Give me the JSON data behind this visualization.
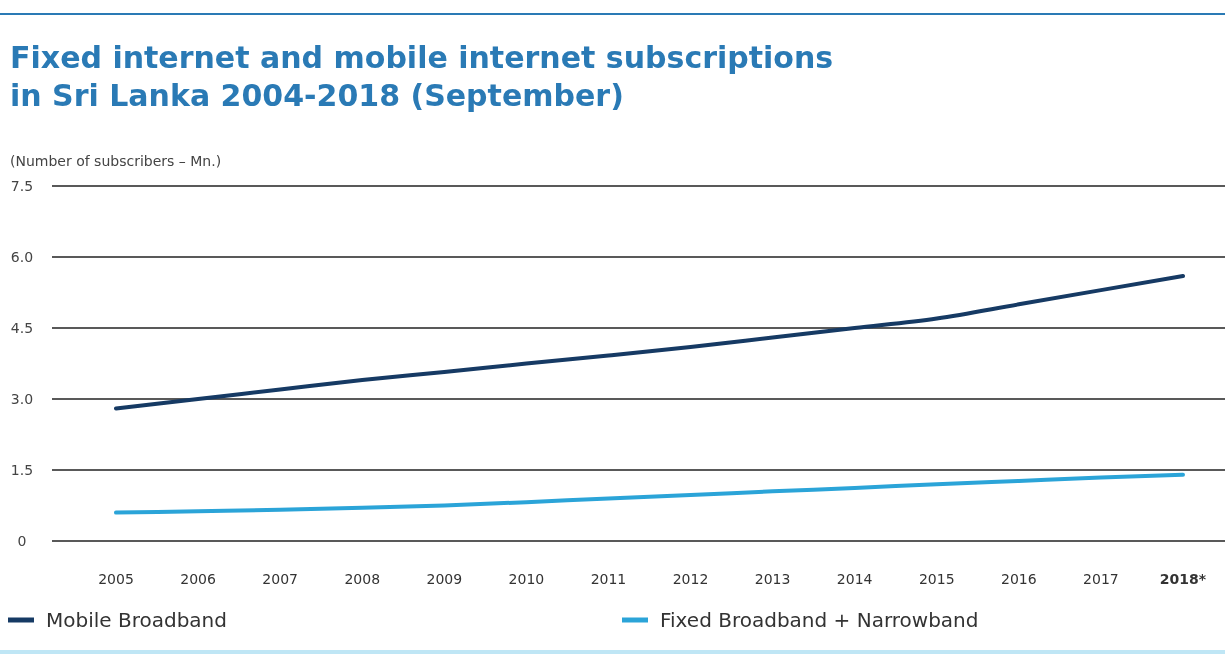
{
  "chart_data": {
    "type": "line",
    "title": "Fixed internet and mobile internet subscriptions\nin Sri Lanka 2004-2018 (September)",
    "ylabel": "(Number of subscribers – Mn.)",
    "categories": [
      "2005",
      "2006",
      "2007",
      "2008",
      "2009",
      "2010",
      "2011",
      "2012",
      "2013",
      "2014",
      "2015",
      "2016",
      "2017",
      "2018*"
    ],
    "series": [
      {
        "name": "Mobile Broadband",
        "color": "#163a64",
        "values": [
          2.8,
          3.0,
          3.2,
          3.4,
          3.57,
          3.75,
          3.92,
          4.1,
          4.3,
          4.5,
          4.7,
          5.0,
          5.3,
          5.6
        ]
      },
      {
        "name": "Fixed Broadband + Narrowband",
        "color": "#2ba4d8",
        "values": [
          0.6,
          0.63,
          0.66,
          0.7,
          0.75,
          0.82,
          0.9,
          0.97,
          1.05,
          1.12,
          1.2,
          1.27,
          1.34,
          1.4
        ]
      }
    ],
    "ylim": [
      0,
      7.5
    ],
    "yticks": [
      0,
      1.5,
      {
        "value": 3,
        "label": "3.0"
      },
      4.5,
      {
        "value": 6,
        "label": "6.0"
      },
      7.5
    ],
    "grid": "y",
    "legend": "bottom",
    "marker": "none",
    "line_style": "solid"
  }
}
